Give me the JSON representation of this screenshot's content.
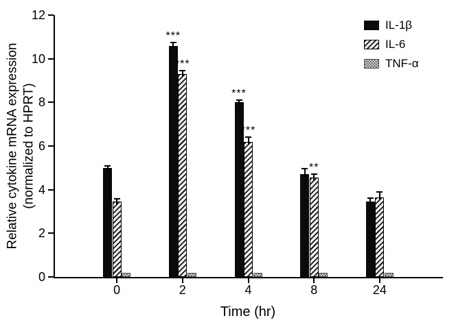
{
  "chart_data": {
    "type": "bar",
    "title": "",
    "xlabel": "Time (hr)",
    "ylabel_line1": "Relative cytokine mRNA expression",
    "ylabel_line2": "(normalized to HPRT)",
    "categories": [
      "0",
      "2",
      "4",
      "8",
      "24"
    ],
    "ylim": [
      0,
      12
    ],
    "yticks": [
      0,
      2,
      4,
      6,
      8,
      10,
      12
    ],
    "grid": false,
    "legend_position": "top-right",
    "series": [
      {
        "name": "IL-1β",
        "pattern": "solid-black",
        "values": [
          5.0,
          10.6,
          8.0,
          4.7,
          3.45
        ],
        "errors": [
          0.1,
          0.15,
          0.12,
          0.25,
          0.15
        ],
        "significance": [
          "",
          "***",
          "***",
          "",
          ""
        ]
      },
      {
        "name": "IL-6",
        "pattern": "diagonal-hatch",
        "values": [
          3.45,
          9.3,
          6.2,
          4.55,
          3.65
        ],
        "errors": [
          0.12,
          0.15,
          0.2,
          0.15,
          0.25
        ],
        "significance": [
          "",
          "***",
          "***",
          "**",
          ""
        ]
      },
      {
        "name": "TNF-α",
        "pattern": "gray-checker",
        "values": [
          0.2,
          0.2,
          0.2,
          0.2,
          0.2
        ],
        "errors": [
          0,
          0,
          0,
          0,
          0
        ],
        "significance": [
          "",
          "",
          "",
          "",
          ""
        ]
      }
    ]
  },
  "colors": {
    "bar_solid": "#0a0a0a",
    "hatch_foreground": "#141414",
    "hatch_background": "#efefef",
    "checker_dark": "#6e6e6e",
    "checker_light": "#d2d2d2",
    "axis": "#000000"
  }
}
